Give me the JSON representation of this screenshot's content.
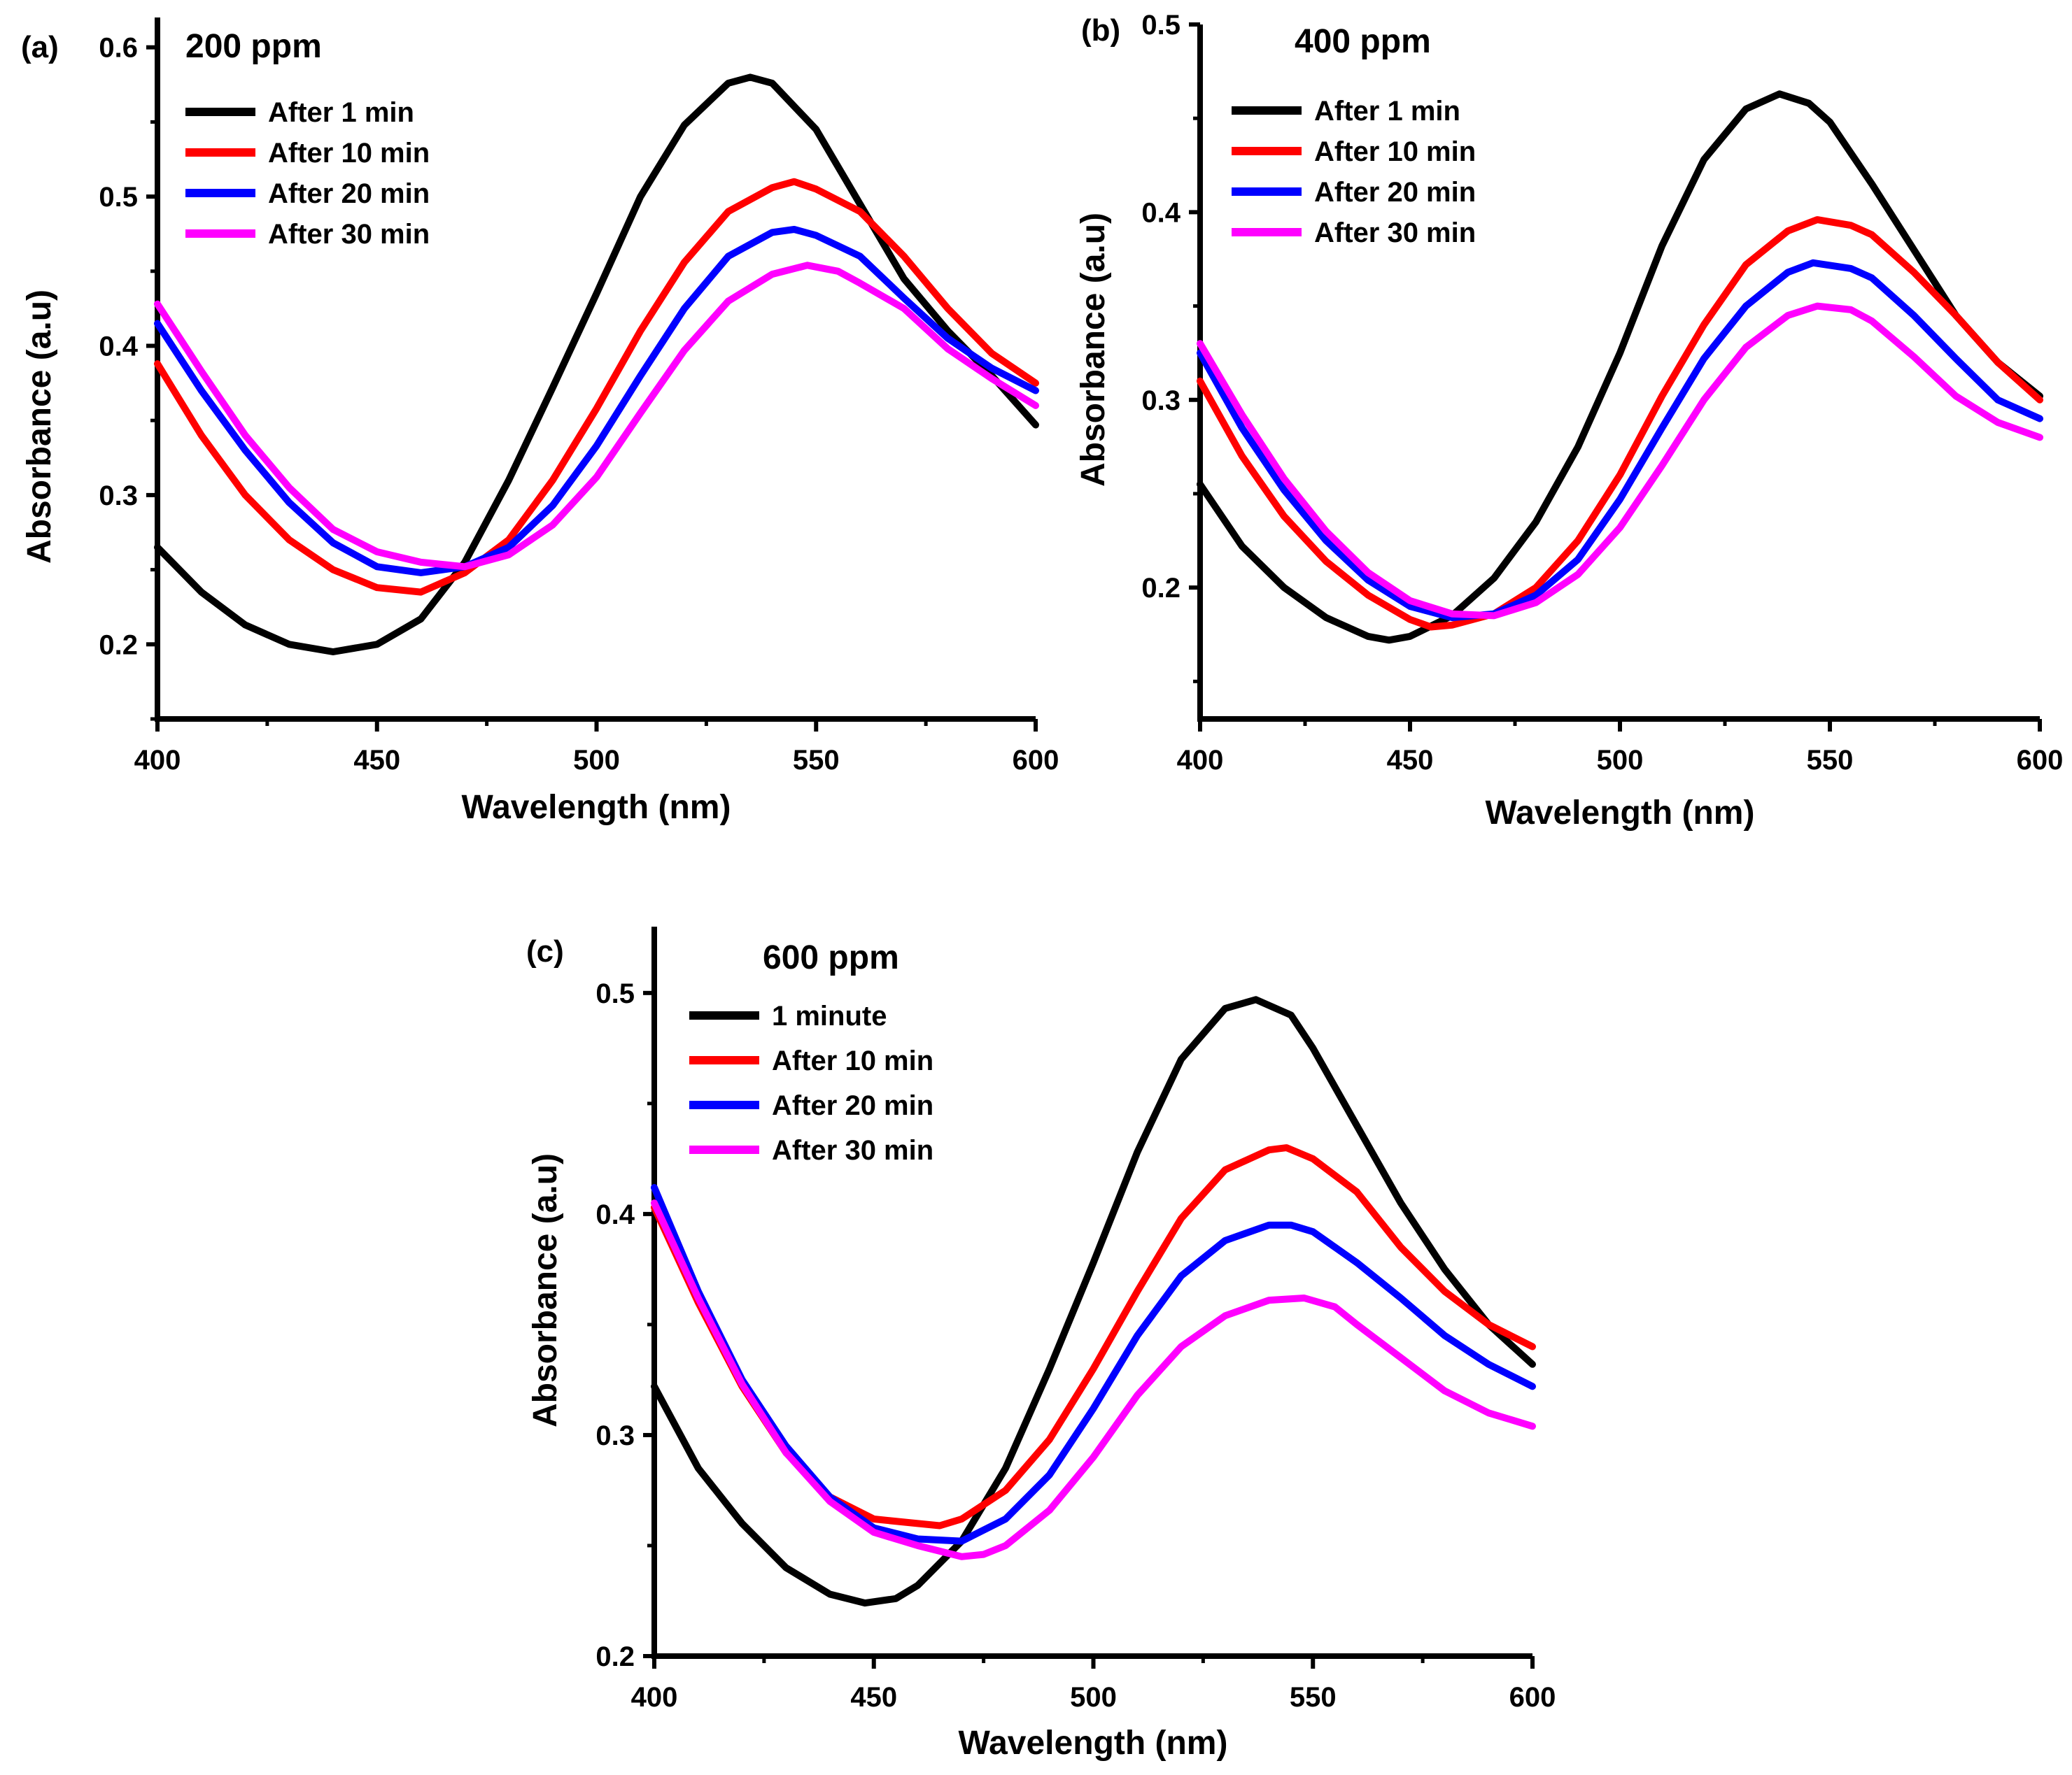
{
  "figure": {
    "description_label": "UV-Vis absorbance spectra at three concentrations"
  },
  "chart_data": [
    {
      "type": "line",
      "panel_label": "(a)",
      "title": "200 ppm",
      "xlabel": "Wavelength (nm)",
      "ylabel": "Absorbance (a.u)",
      "xlim": [
        400,
        600
      ],
      "ylim": [
        0.15,
        0.62
      ],
      "xticks": [
        400,
        450,
        500,
        550,
        600
      ],
      "yticks": [
        0.2,
        0.3,
        0.4,
        0.5,
        0.6
      ],
      "ytick_labels": [
        "0.2",
        "0.3",
        "0.4",
        "0.5",
        "0.6"
      ],
      "grid": false,
      "legend_position": "top-left",
      "series": [
        {
          "name": "After 1 min",
          "color": "#000000",
          "x": [
            400,
            410,
            420,
            430,
            440,
            450,
            460,
            470,
            480,
            490,
            500,
            510,
            520,
            530,
            535,
            540,
            550,
            560,
            570,
            580,
            590,
            600
          ],
          "y": [
            0.265,
            0.235,
            0.213,
            0.2,
            0.195,
            0.2,
            0.217,
            0.255,
            0.31,
            0.372,
            0.435,
            0.5,
            0.548,
            0.576,
            0.58,
            0.576,
            0.545,
            0.495,
            0.445,
            0.41,
            0.38,
            0.347
          ]
        },
        {
          "name": "After 10 min",
          "color": "#ff0000",
          "x": [
            400,
            410,
            420,
            430,
            440,
            450,
            460,
            470,
            480,
            490,
            500,
            510,
            520,
            530,
            540,
            545,
            550,
            560,
            570,
            580,
            590,
            600
          ],
          "y": [
            0.388,
            0.34,
            0.3,
            0.27,
            0.25,
            0.238,
            0.235,
            0.248,
            0.27,
            0.31,
            0.358,
            0.41,
            0.456,
            0.49,
            0.506,
            0.51,
            0.505,
            0.49,
            0.46,
            0.425,
            0.395,
            0.375
          ]
        },
        {
          "name": "After 20 min",
          "color": "#0000ff",
          "x": [
            400,
            410,
            420,
            430,
            440,
            450,
            460,
            470,
            480,
            490,
            500,
            510,
            520,
            530,
            540,
            545,
            550,
            560,
            570,
            580,
            590,
            600
          ],
          "y": [
            0.415,
            0.37,
            0.33,
            0.295,
            0.268,
            0.252,
            0.248,
            0.252,
            0.265,
            0.293,
            0.333,
            0.38,
            0.425,
            0.46,
            0.476,
            0.478,
            0.474,
            0.46,
            0.432,
            0.405,
            0.385,
            0.37
          ]
        },
        {
          "name": "After 30 min",
          "color": "#ff00ff",
          "x": [
            400,
            410,
            420,
            430,
            440,
            450,
            460,
            470,
            480,
            490,
            500,
            510,
            520,
            530,
            540,
            548,
            555,
            560,
            570,
            580,
            590,
            600
          ],
          "y": [
            0.428,
            0.383,
            0.34,
            0.305,
            0.277,
            0.262,
            0.255,
            0.252,
            0.26,
            0.28,
            0.312,
            0.355,
            0.397,
            0.43,
            0.448,
            0.454,
            0.45,
            0.442,
            0.425,
            0.398,
            0.378,
            0.36
          ]
        }
      ]
    },
    {
      "type": "line",
      "panel_label": "(b)",
      "title": "400 ppm",
      "xlabel": "Wavelength (nm)",
      "ylabel": "Absorbance (a.u)",
      "xlim": [
        400,
        600
      ],
      "ylim": [
        0.13,
        0.5
      ],
      "xticks": [
        400,
        450,
        500,
        550,
        600
      ],
      "yticks": [
        0.2,
        0.3,
        0.4,
        0.5
      ],
      "ytick_labels": [
        "0.2",
        "0.3",
        "0.4",
        "0.5"
      ],
      "grid": false,
      "legend_position": "top-left",
      "series": [
        {
          "name": "After 1 min",
          "color": "#000000",
          "x": [
            400,
            410,
            420,
            430,
            440,
            445,
            450,
            460,
            470,
            480,
            490,
            500,
            510,
            520,
            530,
            538,
            545,
            550,
            560,
            570,
            580,
            590,
            600
          ],
          "y": [
            0.255,
            0.222,
            0.2,
            0.184,
            0.174,
            0.172,
            0.174,
            0.185,
            0.205,
            0.235,
            0.275,
            0.325,
            0.382,
            0.428,
            0.455,
            0.463,
            0.458,
            0.448,
            0.415,
            0.38,
            0.345,
            0.32,
            0.302
          ]
        },
        {
          "name": "After 10 min",
          "color": "#ff0000",
          "x": [
            400,
            410,
            420,
            430,
            440,
            450,
            455,
            460,
            470,
            480,
            490,
            500,
            510,
            520,
            530,
            540,
            547,
            555,
            560,
            570,
            580,
            590,
            600
          ],
          "y": [
            0.31,
            0.27,
            0.238,
            0.214,
            0.196,
            0.183,
            0.179,
            0.18,
            0.186,
            0.2,
            0.225,
            0.26,
            0.302,
            0.34,
            0.372,
            0.39,
            0.396,
            0.393,
            0.388,
            0.368,
            0.345,
            0.32,
            0.3
          ]
        },
        {
          "name": "After 20 min",
          "color": "#0000ff",
          "x": [
            400,
            410,
            420,
            430,
            440,
            450,
            460,
            470,
            480,
            490,
            500,
            510,
            520,
            530,
            540,
            546,
            555,
            560,
            570,
            580,
            590,
            600
          ],
          "y": [
            0.325,
            0.285,
            0.252,
            0.225,
            0.204,
            0.19,
            0.184,
            0.186,
            0.196,
            0.215,
            0.247,
            0.285,
            0.322,
            0.35,
            0.368,
            0.373,
            0.37,
            0.365,
            0.345,
            0.322,
            0.3,
            0.29
          ]
        },
        {
          "name": "After 30 min",
          "color": "#ff00ff",
          "x": [
            400,
            410,
            420,
            430,
            440,
            450,
            460,
            470,
            480,
            490,
            500,
            510,
            520,
            530,
            540,
            547,
            555,
            560,
            570,
            580,
            590,
            600
          ],
          "y": [
            0.33,
            0.292,
            0.258,
            0.23,
            0.208,
            0.193,
            0.186,
            0.185,
            0.192,
            0.207,
            0.232,
            0.265,
            0.3,
            0.328,
            0.345,
            0.35,
            0.348,
            0.342,
            0.323,
            0.302,
            0.288,
            0.28
          ]
        }
      ]
    },
    {
      "type": "line",
      "panel_label": "(c)",
      "title": "600 ppm",
      "xlabel": "Wavelength (nm)",
      "ylabel": "Absorbance (a.u)",
      "xlim": [
        400,
        600
      ],
      "ylim": [
        0.2,
        0.53
      ],
      "xticks": [
        400,
        450,
        500,
        550,
        600
      ],
      "yticks": [
        0.2,
        0.3,
        0.4,
        0.5
      ],
      "ytick_labels": [
        "0.2",
        "0.3",
        "0.4",
        "0.5"
      ],
      "grid": false,
      "legend_position": "top-left",
      "series": [
        {
          "name": "1 minute",
          "color": "#000000",
          "x": [
            400,
            410,
            420,
            430,
            440,
            448,
            455,
            460,
            470,
            480,
            490,
            500,
            510,
            520,
            530,
            537,
            545,
            550,
            560,
            570,
            580,
            590,
            600
          ],
          "y": [
            0.322,
            0.285,
            0.26,
            0.24,
            0.228,
            0.224,
            0.226,
            0.232,
            0.252,
            0.285,
            0.33,
            0.378,
            0.428,
            0.47,
            0.493,
            0.497,
            0.49,
            0.475,
            0.44,
            0.405,
            0.375,
            0.35,
            0.332
          ]
        },
        {
          "name": "After 10 min",
          "color": "#ff0000",
          "x": [
            400,
            410,
            420,
            430,
            440,
            450,
            460,
            465,
            470,
            480,
            490,
            500,
            510,
            520,
            530,
            540,
            544,
            550,
            560,
            570,
            580,
            590,
            600
          ],
          "y": [
            0.403,
            0.36,
            0.322,
            0.292,
            0.272,
            0.262,
            0.26,
            0.259,
            0.262,
            0.275,
            0.298,
            0.33,
            0.365,
            0.398,
            0.42,
            0.429,
            0.43,
            0.425,
            0.41,
            0.385,
            0.365,
            0.35,
            0.34
          ]
        },
        {
          "name": "After 20 min",
          "color": "#0000ff",
          "x": [
            400,
            410,
            420,
            430,
            440,
            450,
            460,
            470,
            480,
            490,
            500,
            510,
            520,
            530,
            540,
            545,
            550,
            560,
            570,
            580,
            590,
            600
          ],
          "y": [
            0.412,
            0.365,
            0.325,
            0.295,
            0.272,
            0.258,
            0.253,
            0.252,
            0.262,
            0.282,
            0.312,
            0.345,
            0.372,
            0.388,
            0.395,
            0.395,
            0.392,
            0.378,
            0.362,
            0.345,
            0.332,
            0.322
          ]
        },
        {
          "name": "After 30 min",
          "color": "#ff00ff",
          "x": [
            400,
            410,
            420,
            430,
            440,
            450,
            460,
            470,
            475,
            480,
            490,
            500,
            510,
            520,
            530,
            540,
            548,
            555,
            560,
            570,
            580,
            590,
            600
          ],
          "y": [
            0.405,
            0.362,
            0.323,
            0.292,
            0.27,
            0.256,
            0.25,
            0.245,
            0.246,
            0.25,
            0.266,
            0.29,
            0.318,
            0.34,
            0.354,
            0.361,
            0.362,
            0.358,
            0.35,
            0.335,
            0.32,
            0.31,
            0.304
          ]
        }
      ]
    }
  ]
}
